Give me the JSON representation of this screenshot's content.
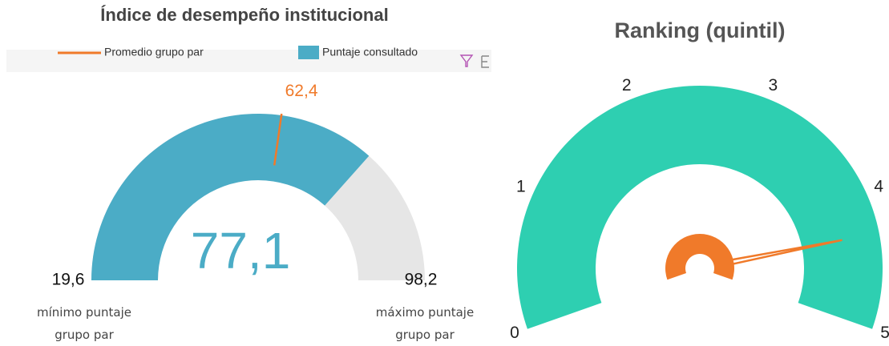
{
  "chart_data": [
    {
      "type": "gauge",
      "title": "Índice de desempeño institucional",
      "series": [
        {
          "name": "Promedio grupo par",
          "color": "#f07a2a",
          "values": [
            62.4
          ],
          "value_labels": [
            "62,4"
          ]
        },
        {
          "name": "Puntaje consultado",
          "color": "#4bacc6",
          "values": [
            77.1
          ],
          "value_labels": [
            "77,1"
          ]
        }
      ],
      "ylim": [
        19.6,
        98.2
      ],
      "yticks": [
        {
          "value": 19.6,
          "label": "19,6"
        },
        {
          "value": 98.2,
          "label": "98,2"
        }
      ],
      "track_color": "#e6e6e6",
      "annotations": [
        "mínimo puntaje grupo par",
        "máximo puntaje grupo par"
      ]
    },
    {
      "type": "speedometer",
      "title": "Ranking (quintil)",
      "values": [
        4.3
      ],
      "color": "#2ecfb1",
      "needle_color": "#f07a2a",
      "ylim": [
        0,
        5
      ],
      "yticks": [
        0,
        1,
        2,
        3,
        4,
        5
      ]
    }
  ]
}
